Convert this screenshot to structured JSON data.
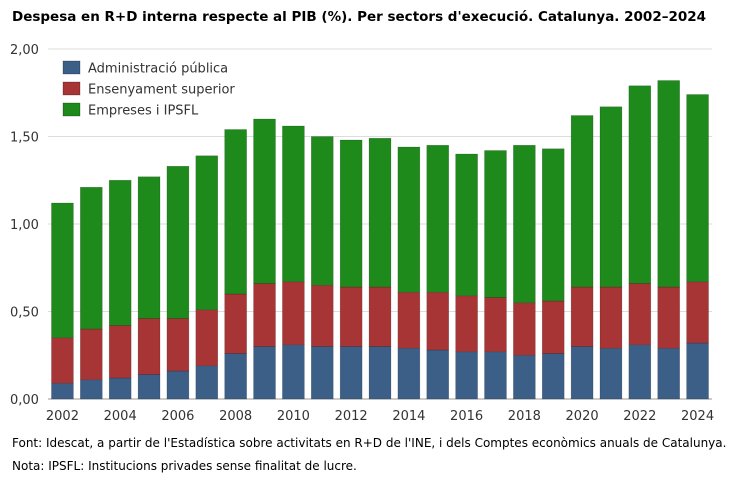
{
  "title": "Despesa en R+D interna respecte al PIB (%). Per sectors d'execució. Catalunya. 2002–2024",
  "notes": {
    "source": "Font: Idescat, a partir de l'Estadística sobre activitats en R+D de l'INE, i dels Comptes econòmics anuals de Catalunya.",
    "note": "Nota: IPSFL: Institucions privades sense finalitat de lucre."
  },
  "chart_data": {
    "type": "bar",
    "stacked": true,
    "categories": [
      "2002",
      "2003",
      "2004",
      "2005",
      "2006",
      "2007",
      "2008",
      "2009",
      "2010",
      "2011",
      "2012",
      "2013",
      "2014",
      "2015",
      "2016",
      "2017",
      "2018",
      "2019",
      "2020",
      "2021",
      "2022",
      "2023",
      "2024"
    ],
    "x_tick_labels": [
      "2002",
      "2004",
      "2006",
      "2008",
      "2010",
      "2012",
      "2014",
      "2016",
      "2018",
      "2020",
      "2022",
      "2024"
    ],
    "y_tick_labels": [
      "0,00",
      "0,50",
      "1,00",
      "1,50",
      "2,00"
    ],
    "ylim": [
      0,
      2.0
    ],
    "grid": true,
    "legend_position": "top-left",
    "series": [
      {
        "name": "Administració pública",
        "color": "#3c5f87",
        "values": [
          0.09,
          0.11,
          0.12,
          0.14,
          0.16,
          0.19,
          0.26,
          0.3,
          0.31,
          0.3,
          0.3,
          0.3,
          0.29,
          0.28,
          0.27,
          0.27,
          0.25,
          0.26,
          0.3,
          0.29,
          0.31,
          0.29,
          0.32
        ]
      },
      {
        "name": "Ensenyament superior",
        "color": "#a83535",
        "values": [
          0.26,
          0.29,
          0.3,
          0.32,
          0.3,
          0.32,
          0.34,
          0.36,
          0.36,
          0.35,
          0.34,
          0.34,
          0.32,
          0.33,
          0.32,
          0.31,
          0.3,
          0.3,
          0.34,
          0.35,
          0.35,
          0.35,
          0.35
        ]
      },
      {
        "name": "Empreses i IPSFL",
        "color": "#1f8a1c",
        "values": [
          0.77,
          0.81,
          0.83,
          0.81,
          0.87,
          0.88,
          0.94,
          0.94,
          0.89,
          0.85,
          0.84,
          0.85,
          0.83,
          0.84,
          0.81,
          0.84,
          0.9,
          0.87,
          0.98,
          1.03,
          1.13,
          1.18,
          1.07
        ]
      }
    ]
  }
}
